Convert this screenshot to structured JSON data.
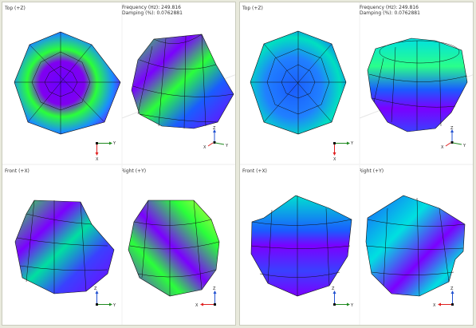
{
  "panels": [
    {
      "top_label": "Top (+Z)",
      "front_label": "Front (+X)",
      "right_label": "Right (+Y)",
      "frequency_text": "Frequency (Hz): 249.816",
      "damping_text": "Damping (%): 0.0762881",
      "axes": {
        "x": "X",
        "y": "Y",
        "z": "Z"
      }
    },
    {
      "top_label": "Top (+Z)",
      "front_label": "Front (+X)",
      "right_label": "Right (+Y)",
      "frequency_text": "Frequency (Hz): 249.816",
      "damping_text": "Damping (%): 0.0762881",
      "axes": {
        "x": "X",
        "y": "Y",
        "z": "Z"
      }
    }
  ],
  "colors": {
    "background": "#e8e9dc",
    "panel": "#ffffff",
    "mesh_violet": "#7b00ff",
    "mesh_blue": "#1a5cff",
    "mesh_cyan": "#00e0e0",
    "mesh_green": "#2aff3a",
    "mesh_yellow": "#e0ff40",
    "axis_x": "#e02020",
    "axis_y": "#208a20",
    "axis_z": "#2050d0"
  }
}
